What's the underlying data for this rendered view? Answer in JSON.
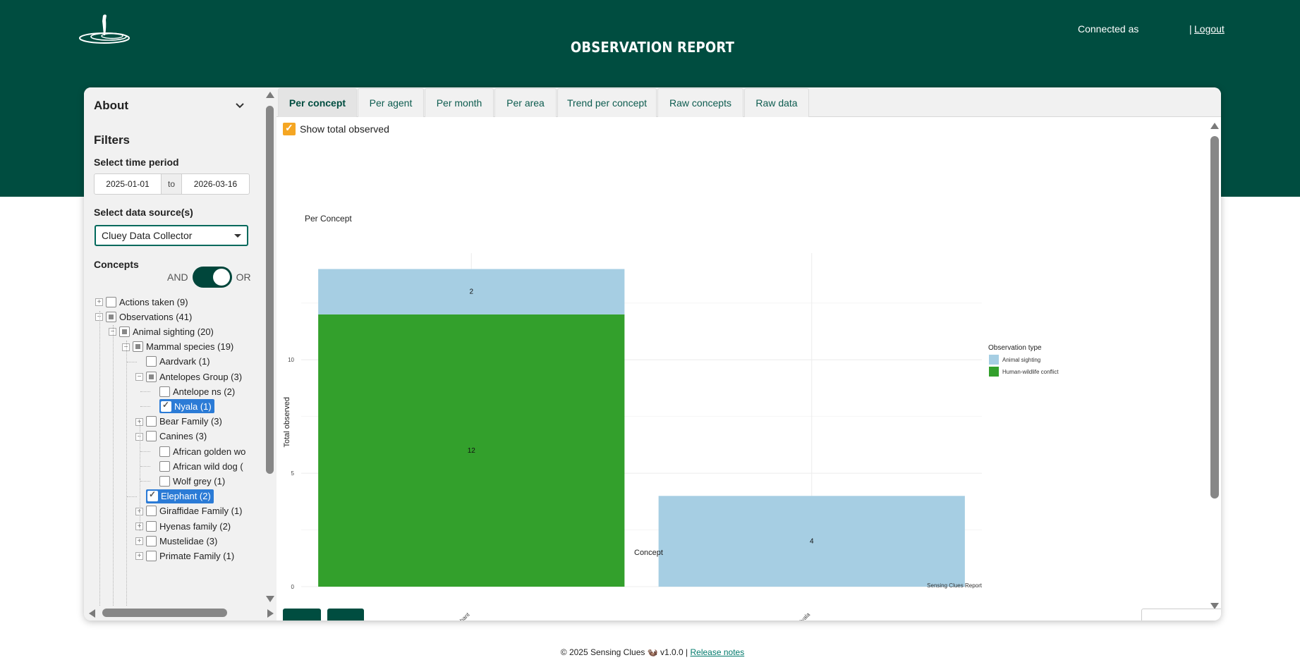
{
  "header": {
    "title": "OBSERVATION REPORT",
    "connected_as": "Connected as",
    "separator": "|",
    "logout": "Logout",
    "logo_icon": "meerkat-logo",
    "bg_color": "#004d40"
  },
  "sidebar": {
    "about": "About",
    "filters": "Filters",
    "time_period_label": "Select time period",
    "date_from": "2025-01-01",
    "date_to_sep": "to",
    "date_to": "2026-03-16",
    "data_source_label": "Select data source(s)",
    "data_source_value": "Cluey Data Collector",
    "concepts_label": "Concepts",
    "and_label": "AND",
    "or_label": "OR",
    "tree": [
      {
        "label": "Actions taken (9)",
        "level": 0,
        "exp": "+",
        "state": "unchecked"
      },
      {
        "label": "Observations (41)",
        "level": 0,
        "exp": "-",
        "state": "partial"
      },
      {
        "label": "Animal sighting (20)",
        "level": 1,
        "exp": "-",
        "state": "partial"
      },
      {
        "label": "Mammal species (19)",
        "level": 2,
        "exp": "-",
        "state": "partial"
      },
      {
        "label": "Aardvark (1)",
        "level": 3,
        "exp": "",
        "state": "unchecked"
      },
      {
        "label": "Antelopes Group (3)",
        "level": 3,
        "exp": "-",
        "state": "partial"
      },
      {
        "label": "Antelope ns (2)",
        "level": 4,
        "exp": "",
        "state": "unchecked"
      },
      {
        "label": "Nyala (1)",
        "level": 4,
        "exp": "",
        "state": "selected"
      },
      {
        "label": "Bear Family (3)",
        "level": 3,
        "exp": "+",
        "state": "unchecked"
      },
      {
        "label": "Canines (3)",
        "level": 3,
        "exp": "-",
        "state": "unchecked"
      },
      {
        "label": "African golden wo",
        "level": 4,
        "exp": "",
        "state": "unchecked"
      },
      {
        "label": "African wild dog (",
        "level": 4,
        "exp": "",
        "state": "unchecked"
      },
      {
        "label": "Wolf grey (1)",
        "level": 4,
        "exp": "",
        "state": "unchecked"
      },
      {
        "label": "Elephant (2)",
        "level": 3,
        "exp": "",
        "state": "selected"
      },
      {
        "label": "Giraffidae Family (1)",
        "level": 3,
        "exp": "+",
        "state": "unchecked"
      },
      {
        "label": "Hyenas family (2)",
        "level": 3,
        "exp": "+",
        "state": "unchecked"
      },
      {
        "label": "Mustelidae (3)",
        "level": 3,
        "exp": "+",
        "state": "unchecked"
      },
      {
        "label": "Primate Family (1)",
        "level": 3,
        "exp": "+",
        "state": "unchecked"
      }
    ]
  },
  "tabs": [
    {
      "label": "Per concept",
      "active": true
    },
    {
      "label": "Per agent",
      "active": false
    },
    {
      "label": "Per month",
      "active": false
    },
    {
      "label": "Per area",
      "active": false
    },
    {
      "label": "Trend per concept",
      "active": false
    },
    {
      "label": "Raw concepts",
      "active": false
    },
    {
      "label": "Raw data",
      "active": false
    }
  ],
  "show_total_label": "Show total observed",
  "chart_data": {
    "type": "bar",
    "stacked": true,
    "title": "Per Concept",
    "xlabel": "Concept",
    "ylabel": "Total observed",
    "caption": "Sensing Clues Report",
    "categories": [
      "Elephant",
      "Nyala"
    ],
    "series": [
      {
        "name": "Human-wildlife conflict",
        "values": [
          12,
          0
        ],
        "color": "#33a02c"
      },
      {
        "name": "Animal sighting",
        "values": [
          2,
          4
        ],
        "color": "#a6cee3"
      }
    ],
    "yticks": [
      0,
      5,
      10
    ],
    "ylim": [
      0,
      14.7
    ],
    "legend_title": "Observation type",
    "legend_position": "right",
    "grid": true
  },
  "footer": {
    "copyright": "© 2025 Sensing Clues",
    "version": "v1.0.0 |",
    "release_notes": "Release notes"
  }
}
